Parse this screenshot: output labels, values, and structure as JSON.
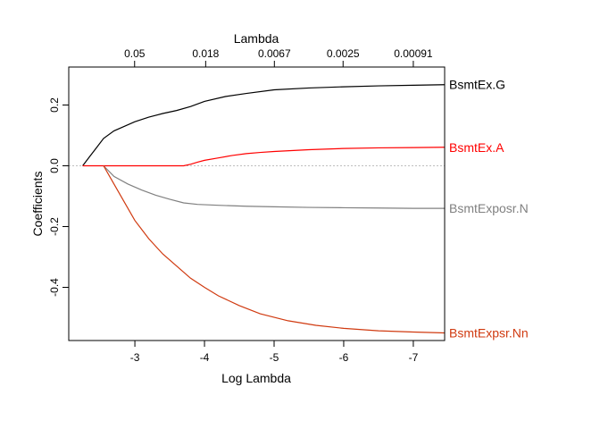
{
  "chart_data": {
    "type": "line",
    "xlabel": "Log Lambda",
    "ylabel": "Coefficients",
    "top_axis_label": "Lambda",
    "xlim": [
      -2.05,
      -7.45
    ],
    "ylim": [
      -0.575,
      0.325
    ],
    "x_ticks": [
      {
        "value": -3,
        "label": "-3"
      },
      {
        "value": -4,
        "label": "-4"
      },
      {
        "value": -5,
        "label": "-5"
      },
      {
        "value": -6,
        "label": "-6"
      },
      {
        "value": -7,
        "label": "-7"
      }
    ],
    "y_ticks": [
      {
        "value": 0.2,
        "label": "0.2"
      },
      {
        "value": 0.0,
        "label": "0.0"
      },
      {
        "value": -0.2,
        "label": "-0.2"
      },
      {
        "value": -0.4,
        "label": "-0.4"
      }
    ],
    "top_ticks": [
      {
        "value": -2.996,
        "label": "0.05"
      },
      {
        "value": -4.017,
        "label": "0.018"
      },
      {
        "value": -5.004,
        "label": "0.0067"
      },
      {
        "value": -5.991,
        "label": "0.0025"
      },
      {
        "value": -7.0,
        "label": "0.00091"
      }
    ],
    "zero_line": {
      "y": 0,
      "color": "#bebebe",
      "style": "dotted"
    },
    "series": [
      {
        "name": "BsmtEx.G",
        "color": "#000000",
        "x": [
          -2.25,
          -2.35,
          -2.45,
          -2.55,
          -2.7,
          -2.85,
          -3.0,
          -3.2,
          -3.4,
          -3.6,
          -3.8,
          -4.0,
          -4.3,
          -4.6,
          -5.0,
          -5.5,
          -6.0,
          -6.5,
          -7.0,
          -7.45
        ],
        "y": [
          0.0,
          0.03,
          0.06,
          0.09,
          0.115,
          0.13,
          0.145,
          0.16,
          0.172,
          0.182,
          0.195,
          0.212,
          0.228,
          0.238,
          0.25,
          0.256,
          0.26,
          0.263,
          0.265,
          0.267
        ]
      },
      {
        "name": "BsmtEx.A",
        "color": "#ff0000",
        "x": [
          -2.25,
          -2.5,
          -3.0,
          -3.5,
          -3.7,
          -3.8,
          -3.9,
          -4.0,
          -4.2,
          -4.4,
          -4.6,
          -4.8,
          -5.0,
          -5.5,
          -6.0,
          -6.5,
          -7.0,
          -7.45
        ],
        "y": [
          0.0,
          0.0,
          0.0,
          0.0,
          0.0,
          0.005,
          0.012,
          0.018,
          0.026,
          0.034,
          0.04,
          0.044,
          0.047,
          0.053,
          0.057,
          0.059,
          0.06,
          0.061
        ]
      },
      {
        "name": "BsmtExposr.N",
        "color": "#808080",
        "x": [
          -2.55,
          -2.7,
          -2.9,
          -3.1,
          -3.3,
          -3.5,
          -3.7,
          -3.9,
          -4.2,
          -4.6,
          -5.0,
          -5.5,
          -6.0,
          -6.5,
          -7.0,
          -7.45
        ],
        "y": [
          0.0,
          -0.035,
          -0.06,
          -0.08,
          -0.097,
          -0.11,
          -0.122,
          -0.127,
          -0.13,
          -0.133,
          -0.135,
          -0.137,
          -0.138,
          -0.139,
          -0.14,
          -0.14
        ]
      },
      {
        "name": "BsmtExpsr.Nn",
        "color": "#d03a10",
        "x": [
          -2.55,
          -2.7,
          -2.85,
          -3.0,
          -3.2,
          -3.4,
          -3.6,
          -3.8,
          -4.0,
          -4.2,
          -4.5,
          -4.8,
          -5.2,
          -5.6,
          -6.0,
          -6.5,
          -7.0,
          -7.45
        ],
        "y": [
          0.0,
          -0.06,
          -0.12,
          -0.18,
          -0.24,
          -0.29,
          -0.33,
          -0.37,
          -0.4,
          -0.428,
          -0.46,
          -0.487,
          -0.51,
          -0.525,
          -0.535,
          -0.543,
          -0.547,
          -0.55
        ]
      }
    ]
  }
}
